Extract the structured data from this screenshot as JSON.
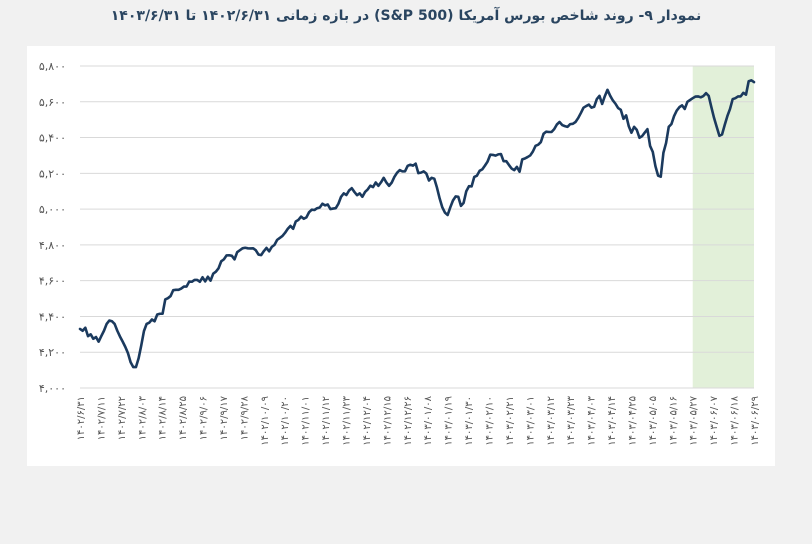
{
  "title": "نمودار ۹- روند شاخص بورس آمریکا (S&P 500) در بازه زمانی ۱۴۰۲/۶/۳۱ تا ۱۴۰۳/۶/۳۱",
  "colors": {
    "line": "#1b3a5e",
    "highlight": "#e2f0d9",
    "grid": "#d9d9d9",
    "background": "#ffffff"
  },
  "chart_data": {
    "type": "line",
    "title": "نمودار ۹- روند شاخص بورس آمریکا (S&P 500) در بازه زمانی ۱۴۰۲/۶/۳۱ تا ۱۴۰۳/۶/۳۱",
    "xlabel": "",
    "ylabel": "",
    "ylim": [
      4000,
      5800
    ],
    "yticks": [
      4000,
      4200,
      4400,
      4600,
      4800,
      5000,
      5200,
      5400,
      5600,
      5800
    ],
    "ytick_labels": [
      "۴,۰۰۰",
      "۴,۲۰۰",
      "۴,۴۰۰",
      "۴,۶۰۰",
      "۴,۸۰۰",
      "۵,۰۰۰",
      "۵,۲۰۰",
      "۵,۴۰۰",
      "۵,۶۰۰",
      "۵,۸۰۰"
    ],
    "x_labels": [
      "۱۴۰۲/۶/۳۱",
      "۱۴۰۲/۷/۱۱",
      "۱۴۰۲/۷/۲۲",
      "۱۴۰۲/۸/۰۳",
      "۱۴۰۲/۸/۱۴",
      "۱۴۰۲/۸/۲۵",
      "۱۴۰۲/۹/۰۶",
      "۱۴۰۲/۹/۱۷",
      "۱۴۰۲/۹/۲۸",
      "۱۴۰۲/۱۰/۰۹",
      "۱۴۰۲/۱۰/۲۰",
      "۱۴۰۲/۱۱/۰۱",
      "۱۴۰۲/۱۱/۱۲",
      "۱۴۰۲/۱۱/۲۳",
      "۱۴۰۲/۱۲/۰۴",
      "۱۴۰۲/۱۲/۱۵",
      "۱۴۰۲/۱۲/۲۶",
      "۱۴۰۳/۰۱/۰۸",
      "۱۴۰۳/۰۱/۱۹",
      "۱۴۰۳/۰۱/۳۰",
      "۱۴۰۳/۰۲/۱۰",
      "۱۴۰۳/۰۲/۲۱",
      "۱۴۰۳/۰۳/۰۱",
      "۱۴۰۳/۰۳/۱۲",
      "۱۴۰۳/۰۳/۲۳",
      "۱۴۰۳/۰۴/۰۳",
      "۱۴۰۳/۰۴/۱۴",
      "۱۴۰۳/۰۴/۲۵",
      "۱۴۰۳/۰۵/۰۵",
      "۱۴۰۳/۰۵/۱۶",
      "۱۴۰۳/۰۵/۲۷",
      "۱۴۰۳/۰۶/۰۷",
      "۱۴۰۳/۰۶/۱۸",
      "۱۴۰۳/۰۶/۲۹"
    ],
    "highlight_range": [
      "۱۴۰۳/۰۵/۲۷",
      "۱۴۰۳/۰۶/۲۹"
    ],
    "grid": true,
    "legend": "none",
    "series": [
      {
        "values": [
          4330,
          4320,
          4337,
          4290,
          4300,
          4275,
          4285,
          4259,
          4290,
          4320,
          4358,
          4377,
          4373,
          4358,
          4320,
          4288,
          4260,
          4230,
          4195,
          4144,
          4117,
          4117,
          4166,
          4238,
          4318,
          4358,
          4365,
          4383,
          4373,
          4411,
          4415,
          4415,
          4495,
          4502,
          4514,
          4547,
          4549,
          4549,
          4556,
          4567,
          4567,
          4595,
          4594,
          4604,
          4604,
          4594,
          4619,
          4596,
          4622,
          4600,
          4639,
          4650,
          4669,
          4708,
          4719,
          4741,
          4742,
          4739,
          4719,
          4759,
          4770,
          4781,
          4784,
          4781,
          4780,
          4781,
          4770,
          4746,
          4743,
          4765,
          4783,
          4764,
          4789,
          4800,
          4828,
          4839,
          4850,
          4868,
          4890,
          4906,
          4890,
          4931,
          4940,
          4958,
          4946,
          4954,
          4983,
          4997,
          4995,
          5005,
          5009,
          5030,
          5021,
          5026,
          5000,
          5003,
          5005,
          5030,
          5069,
          5088,
          5079,
          5104,
          5117,
          5096,
          5078,
          5088,
          5069,
          5096,
          5110,
          5131,
          5123,
          5149,
          5130,
          5150,
          5175,
          5149,
          5130,
          5148,
          5180,
          5203,
          5218,
          5211,
          5211,
          5242,
          5248,
          5243,
          5254,
          5201,
          5204,
          5211,
          5199,
          5160,
          5175,
          5170,
          5120,
          5060,
          5010,
          4980,
          4967,
          5010,
          5048,
          5071,
          5069,
          5018,
          5035,
          5100,
          5128,
          5127,
          5180,
          5187,
          5214,
          5222,
          5243,
          5266,
          5304,
          5303,
          5299,
          5306,
          5308,
          5268,
          5268,
          5247,
          5227,
          5218,
          5236,
          5209,
          5278,
          5283,
          5291,
          5300,
          5322,
          5354,
          5360,
          5375,
          5421,
          5433,
          5431,
          5431,
          5447,
          5473,
          5487,
          5470,
          5464,
          5460,
          5475,
          5477,
          5487,
          5509,
          5537,
          5567,
          5576,
          5584,
          5567,
          5572,
          5615,
          5633,
          5588,
          5631,
          5667,
          5634,
          5608,
          5589,
          5565,
          5555,
          5505,
          5524,
          5463,
          5427,
          5460,
          5443,
          5399,
          5408,
          5428,
          5447,
          5353,
          5320,
          5240,
          5187,
          5181,
          5315,
          5370,
          5460,
          5475,
          5520,
          5551,
          5570,
          5580,
          5560,
          5600,
          5610,
          5620,
          5629,
          5630,
          5625,
          5632,
          5648,
          5633,
          5570,
          5510,
          5460,
          5410,
          5417,
          5470,
          5520,
          5560,
          5615,
          5620,
          5630,
          5630,
          5650,
          5640,
          5715,
          5720,
          5710
        ]
      }
    ]
  }
}
